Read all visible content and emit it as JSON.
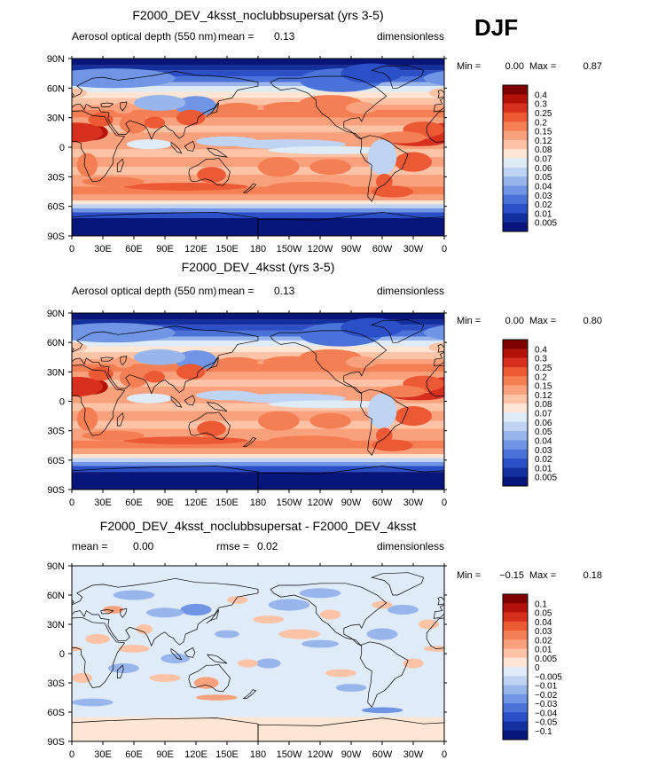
{
  "season_label": "DJF",
  "chart_data": [
    {
      "type": "heatmap",
      "title": "F2000_DEV_4ksst_noclubbsupersat (yrs 3-5)",
      "variable": "Aerosol optical depth (550 nm)",
      "units": "dimensionless",
      "stats": [
        {
          "label": "mean =",
          "value": "0.13"
        }
      ],
      "range_text": {
        "min_label": "Min =",
        "min": "0.00",
        "max_label": "Max =",
        "max": "0.87"
      },
      "x_ticks": [
        "0",
        "30E",
        "60E",
        "90E",
        "120E",
        "150E",
        "180",
        "150W",
        "120W",
        "90W",
        "60W",
        "30W",
        "0"
      ],
      "y_ticks": [
        "90N",
        "60N",
        "30N",
        "0",
        "30S",
        "60S",
        "90S"
      ],
      "colorbar": {
        "levels": [
          "0.4",
          "0.3",
          "0.25",
          "0.2",
          "0.15",
          "0.12",
          "0.08",
          "0.07",
          "0.06",
          "0.05",
          "0.04",
          "0.03",
          "0.02",
          "0.01",
          "0.005"
        ],
        "colors": [
          "#7f0000",
          "#b3120b",
          "#d7301f",
          "#ec5a35",
          "#f57f55",
          "#f9a07d",
          "#fcc3a6",
          "#fde6d6",
          "#e0ebf8",
          "#bfd3f2",
          "#98b6ec",
          "#6f95e4",
          "#4b72d9",
          "#2b4fc6",
          "#14309f",
          "#08157a"
        ]
      },
      "field_mean": 0.13
    },
    {
      "type": "heatmap",
      "title": "F2000_DEV_4ksst (yrs 3-5)",
      "variable": "Aerosol optical depth (550 nm)",
      "units": "dimensionless",
      "stats": [
        {
          "label": "mean =",
          "value": "0.13"
        }
      ],
      "range_text": {
        "min_label": "Min =",
        "min": "0.00",
        "max_label": "Max =",
        "max": "0.80"
      },
      "x_ticks": [
        "0",
        "30E",
        "60E",
        "90E",
        "120E",
        "150E",
        "180",
        "150W",
        "120W",
        "90W",
        "60W",
        "30W",
        "0"
      ],
      "y_ticks": [
        "90N",
        "60N",
        "30N",
        "0",
        "30S",
        "60S",
        "90S"
      ],
      "colorbar": {
        "levels": [
          "0.4",
          "0.3",
          "0.25",
          "0.2",
          "0.15",
          "0.12",
          "0.08",
          "0.07",
          "0.06",
          "0.05",
          "0.04",
          "0.03",
          "0.02",
          "0.01",
          "0.005"
        ],
        "colors": [
          "#7f0000",
          "#b3120b",
          "#d7301f",
          "#ec5a35",
          "#f57f55",
          "#f9a07d",
          "#fcc3a6",
          "#fde6d6",
          "#e0ebf8",
          "#bfd3f2",
          "#98b6ec",
          "#6f95e4",
          "#4b72d9",
          "#2b4fc6",
          "#14309f",
          "#08157a"
        ]
      },
      "field_mean": 0.13
    },
    {
      "type": "heatmap",
      "title": "F2000_DEV_4ksst_noclubbsupersat - F2000_DEV_4ksst",
      "variable": "",
      "units": "dimensionless",
      "stats": [
        {
          "label": "mean =",
          "value": "0.00"
        },
        {
          "label": "rmse =",
          "value": "0.02"
        }
      ],
      "range_text": {
        "min_label": "Min =",
        "min": "−0.15",
        "max_label": "Max =",
        "max": "0.18"
      },
      "x_ticks": [
        "0",
        "30E",
        "60E",
        "90E",
        "120E",
        "150E",
        "180",
        "150W",
        "120W",
        "90W",
        "60W",
        "30W",
        "0"
      ],
      "y_ticks": [
        "90N",
        "60N",
        "30N",
        "0",
        "30S",
        "60S",
        "90S"
      ],
      "colorbar": {
        "levels": [
          "0.1",
          "0.05",
          "0.04",
          "0.03",
          "0.02",
          "0.01",
          "0.005",
          "0",
          "−0.005",
          "−0.01",
          "−0.02",
          "−0.03",
          "−0.04",
          "−0.05",
          "−0.1"
        ],
        "colors": [
          "#7f0000",
          "#b3120b",
          "#d7301f",
          "#ec5a35",
          "#f57f55",
          "#f9a07d",
          "#fcc3a6",
          "#fde6d6",
          "#e0ebf8",
          "#bfd3f2",
          "#98b6ec",
          "#6f95e4",
          "#4b72d9",
          "#2b4fc6",
          "#14309f",
          "#08157a"
        ]
      },
      "field_mean": 0.0
    }
  ]
}
